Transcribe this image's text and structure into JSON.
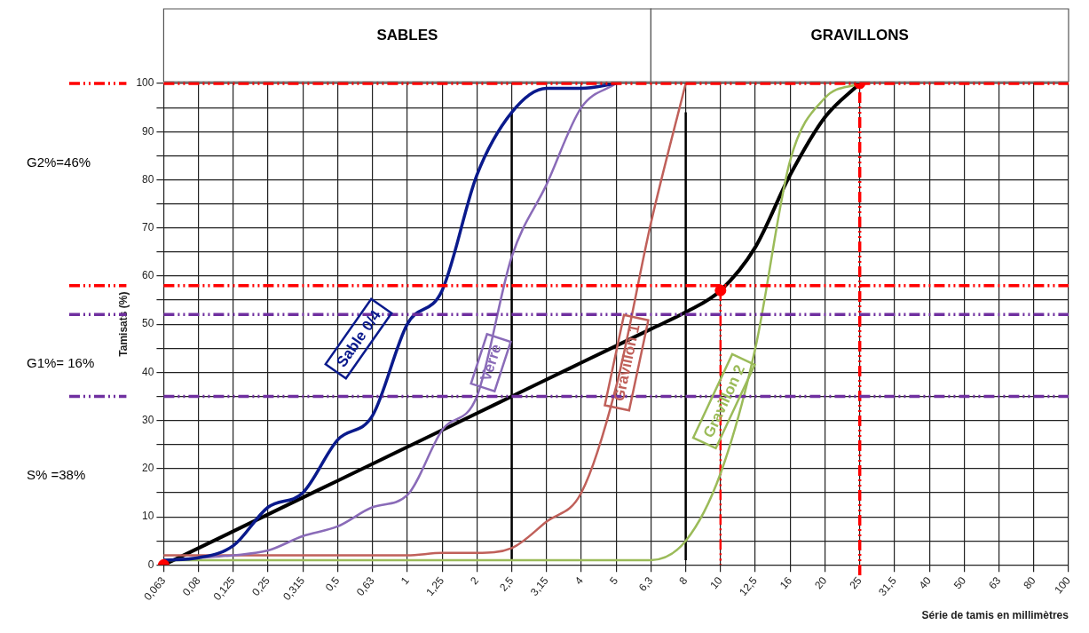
{
  "chart_data": {
    "type": "line",
    "categories": [
      "0,063",
      "0,08",
      "0,125",
      "0,25",
      "0,315",
      "0,5",
      "0,63",
      "1",
      "1,25",
      "2",
      "2,5",
      "3,15",
      "4",
      "5",
      "6,3",
      "8",
      "10",
      "12,5",
      "16",
      "20",
      "25",
      "31,5",
      "40",
      "50",
      "63",
      "80",
      "100"
    ],
    "series": [
      {
        "name": "Sable 0/4",
        "color": "#0a1a8c",
        "values": [
          1,
          1.5,
          4,
          12,
          15,
          26,
          31,
          50,
          57,
          81,
          94,
          99,
          99,
          100,
          null,
          null,
          null,
          null,
          null,
          null,
          null,
          null,
          null,
          null,
          null,
          null,
          null
        ]
      },
      {
        "name": "Verre",
        "color": "#8a6bb8",
        "values": [
          1,
          1.5,
          2,
          3,
          6,
          8,
          12,
          14.5,
          28,
          35,
          64,
          79,
          95,
          100,
          null,
          null,
          null,
          null,
          null,
          null,
          null,
          null,
          null,
          null,
          null,
          null,
          null
        ]
      },
      {
        "name": "Gravillon 1",
        "color": "#c0605a",
        "values": [
          2,
          2,
          2,
          2,
          2,
          2,
          2,
          2,
          2.5,
          2.5,
          3.5,
          9,
          15,
          37,
          71,
          100,
          null,
          null,
          null,
          null,
          null,
          null,
          null,
          null,
          null,
          null,
          null
        ]
      },
      {
        "name": "Gravillon 2",
        "color": "#9bbb59",
        "values": [
          1,
          1,
          1,
          1,
          1,
          1,
          1,
          1,
          1,
          1,
          1,
          1,
          1,
          1,
          1,
          5,
          19,
          45,
          84,
          97,
          100,
          null,
          null,
          null,
          null,
          null,
          null
        ]
      },
      {
        "color": "#000000",
        "values": [
          0,
          3.5,
          7,
          10.5,
          14,
          17.5,
          21,
          24.5,
          28,
          31.5,
          35,
          38.5,
          42,
          45.5,
          49,
          52.5,
          57,
          66,
          81,
          93,
          100,
          null,
          null,
          null,
          null,
          null,
          null
        ]
      },
      {
        "color": "#ff0000",
        "line_style": "dashed",
        "x": [
          "10",
          "10"
        ],
        "values": [
          57,
          0
        ]
      },
      {
        "color": "#000000",
        "x": [
          "2,5",
          "2,5"
        ],
        "values": [
          1,
          94
        ]
      },
      {
        "color": "#000000",
        "x": [
          "8",
          "8"
        ],
        "values": [
          1,
          94
        ]
      },
      {
        "type": "scatter",
        "color": "#ff0000",
        "x": [
          "0,063",
          "10",
          "25"
        ],
        "values": [
          0,
          57,
          100
        ]
      }
    ],
    "ylabel": "Tamisats (%)",
    "xlabel": "Série de tamis en millimètres",
    "ylim": [
      0,
      100
    ],
    "yticks": [
      0,
      {
        "value": 5,
        "label": null
      },
      10,
      {
        "value": 15,
        "label": null
      },
      20,
      {
        "value": 25,
        "label": null
      },
      30,
      {
        "value": 35,
        "label": null
      },
      40,
      {
        "value": 45,
        "label": null
      },
      50,
      {
        "value": 55,
        "label": null
      },
      60,
      {
        "value": 65,
        "label": null
      },
      70,
      {
        "value": 75,
        "label": null
      },
      80,
      {
        "value": 85,
        "label": null
      },
      90,
      {
        "value": 95,
        "label": null
      },
      100
    ],
    "grid": true,
    "legend": false,
    "ref_lines": [
      {
        "axis": "y",
        "value": 100,
        "color": "#ff0000",
        "line_style": "dashed"
      },
      {
        "axis": "y",
        "value": 58,
        "color": "#ff0000",
        "line_style": "dashed"
      },
      {
        "axis": "y",
        "value": 52,
        "color": "#7030a0",
        "line_style": "dashed"
      },
      {
        "axis": "x",
        "value": "25",
        "color": "#ff0000",
        "line_style": "dashed"
      },
      {
        "axis": "y",
        "value": 35,
        "color": "#7030a0",
        "line_style": "dashed"
      }
    ],
    "annotations": [
      "SABLES",
      "GRAVILLONS",
      "G2%=46%",
      "G1%= 16%",
      "S% =38%"
    ]
  }
}
